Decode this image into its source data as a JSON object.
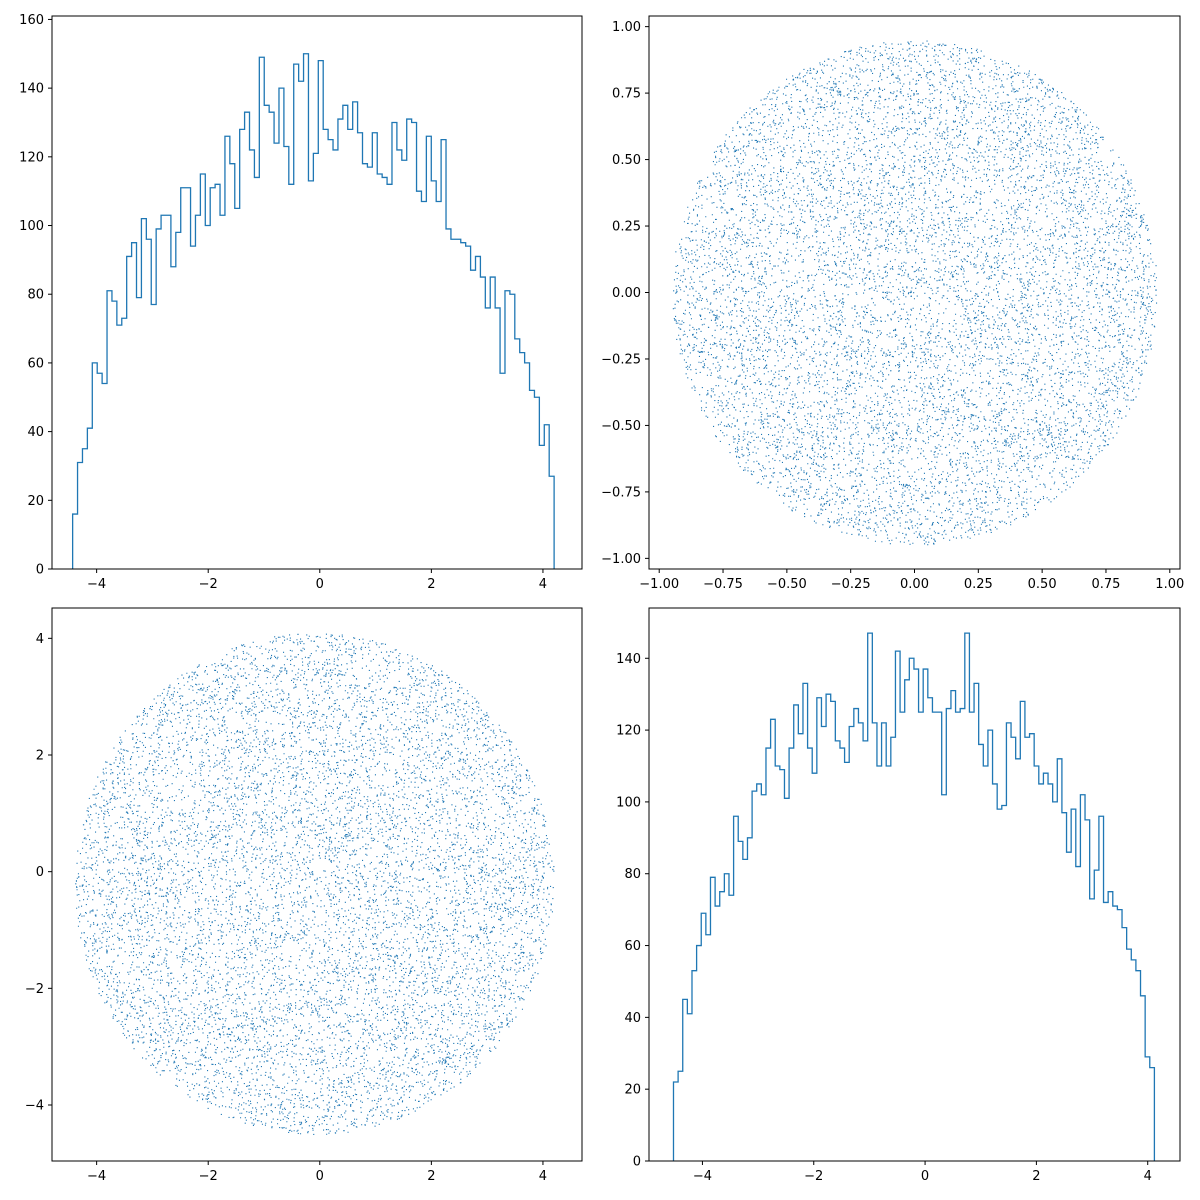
{
  "style": {
    "series_color": "#1f77b4",
    "axes_color": "#000000",
    "background": "#ffffff"
  },
  "chart_data": [
    {
      "id": "top-left",
      "type": "histogram",
      "title": "",
      "xlabel": "",
      "ylabel": "",
      "grid": false,
      "xlim": [
        -4.8,
        4.7
      ],
      "ylim": [
        0,
        161
      ],
      "xticks": [
        -4,
        -2,
        0,
        2,
        4
      ],
      "xtick_labels": [
        "−4",
        "−2",
        "0",
        "2",
        "4"
      ],
      "yticks": [
        0,
        20,
        40,
        60,
        80,
        100,
        120,
        140,
        160
      ],
      "ytick_labels": [
        "0",
        "20",
        "40",
        "60",
        "80",
        "100",
        "120",
        "140",
        "160"
      ],
      "bin_range": [
        -4.43,
        4.2
      ],
      "counts": [
        16,
        31,
        35,
        41,
        60,
        57,
        54,
        81,
        78,
        71,
        73,
        91,
        95,
        79,
        102,
        96,
        77,
        99,
        103,
        103,
        88,
        98,
        111,
        111,
        94,
        103,
        115,
        100,
        111,
        112,
        103,
        126,
        118,
        105,
        128,
        133,
        122,
        114,
        149,
        135,
        133,
        124,
        140,
        123,
        112,
        147,
        142,
        150,
        113,
        121,
        148,
        128,
        125,
        122,
        131,
        135,
        128,
        136,
        127,
        118,
        117,
        127,
        115,
        114,
        112,
        130,
        122,
        119,
        131,
        130,
        110,
        107,
        126,
        113,
        107,
        125,
        99,
        96,
        96,
        95,
        94,
        87,
        91,
        85,
        76,
        85,
        76,
        57,
        81,
        80,
        67,
        63,
        60,
        52,
        50,
        36,
        42,
        27
      ]
    },
    {
      "id": "top-right",
      "type": "scatter",
      "title": "",
      "xlabel": "",
      "ylabel": "",
      "grid": false,
      "shape": "unit-disk",
      "radius": 0.95,
      "center": [
        0,
        0
      ],
      "n_points": 10000,
      "xlim": [
        -1.04,
        1.04
      ],
      "ylim": [
        -1.04,
        1.04
      ],
      "xticks": [
        -1.0,
        -0.75,
        -0.5,
        -0.25,
        0.0,
        0.25,
        0.5,
        0.75,
        1.0
      ],
      "xtick_labels": [
        "−1.00",
        "−0.75",
        "−0.50",
        "−0.25",
        "0.00",
        "0.25",
        "0.50",
        "0.75",
        "1.00"
      ],
      "yticks": [
        -1.0,
        -0.75,
        -0.5,
        -0.25,
        0.0,
        0.25,
        0.5,
        0.75,
        1.0
      ],
      "ytick_labels": [
        "−1.00",
        "−0.75",
        "−0.50",
        "−0.25",
        "0.00",
        "0.25",
        "0.50",
        "0.75",
        "1.00"
      ]
    },
    {
      "id": "bottom-left",
      "type": "scatter",
      "title": "",
      "xlabel": "",
      "ylabel": "",
      "grid": false,
      "shape": "disk",
      "radius": 4.3,
      "center": [
        -0.1,
        -0.2
      ],
      "n_points": 10000,
      "xlim": [
        -4.8,
        4.7
      ],
      "ylim": [
        -4.96,
        4.52
      ],
      "xticks": [
        -4,
        -2,
        0,
        2,
        4
      ],
      "xtick_labels": [
        "−4",
        "−2",
        "0",
        "2",
        "4"
      ],
      "yticks": [
        -4,
        -2,
        0,
        2,
        4
      ],
      "ytick_labels": [
        "−4",
        "−2",
        "0",
        "2",
        "4"
      ]
    },
    {
      "id": "bottom-right",
      "type": "histogram",
      "title": "",
      "xlabel": "",
      "ylabel": "",
      "grid": false,
      "xlim": [
        -4.96,
        4.58
      ],
      "ylim": [
        0,
        154
      ],
      "xticks": [
        -4,
        -2,
        0,
        2,
        4
      ],
      "xtick_labels": [
        "−4",
        "−2",
        "0",
        "2",
        "4"
      ],
      "yticks": [
        0,
        20,
        40,
        60,
        80,
        100,
        120,
        140
      ],
      "ytick_labels": [
        "0",
        "20",
        "40",
        "60",
        "80",
        "100",
        "120",
        "140"
      ],
      "bin_range": [
        -4.52,
        4.12
      ],
      "counts": [
        22,
        25,
        45,
        41,
        53,
        60,
        69,
        63,
        79,
        71,
        75,
        80,
        74,
        96,
        89,
        84,
        90,
        103,
        105,
        102,
        115,
        123,
        110,
        109,
        101,
        115,
        127,
        119,
        133,
        115,
        108,
        129,
        121,
        130,
        128,
        117,
        115,
        111,
        121,
        126,
        122,
        117,
        147,
        122,
        110,
        122,
        110,
        118,
        142,
        125,
        134,
        140,
        137,
        125,
        137,
        129,
        125,
        125,
        102,
        126,
        131,
        125,
        126,
        147,
        125,
        133,
        116,
        110,
        120,
        105,
        98,
        99,
        122,
        118,
        112,
        128,
        118,
        119,
        110,
        105,
        108,
        105,
        100,
        112,
        97,
        86,
        98,
        82,
        102,
        95,
        73,
        81,
        96,
        72,
        75,
        71,
        70,
        65,
        59,
        56,
        53,
        46,
        29,
        26
      ]
    }
  ]
}
